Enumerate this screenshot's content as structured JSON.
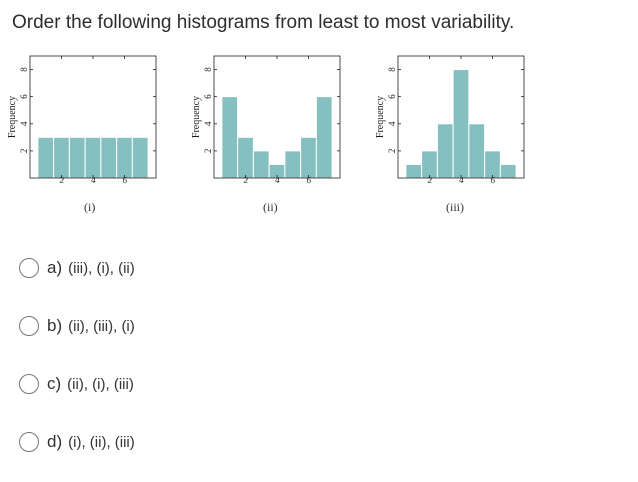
{
  "question": {
    "text": "Order the following histograms from least to most variability."
  },
  "colors": {
    "bar_fill": "#83c0bf",
    "bar_stroke": "#ffffff",
    "axis": "#222222"
  },
  "chart_data": [
    {
      "type": "bar",
      "label": "(i)",
      "ylabel": "Frequency",
      "x": [
        1,
        2,
        3,
        4,
        5,
        6,
        7
      ],
      "values": [
        3,
        3,
        3,
        3,
        3,
        3,
        3
      ],
      "xticks": [
        "2",
        "4",
        "6"
      ],
      "yticks": [
        "2",
        "4",
        "6",
        "8"
      ],
      "ylim": [
        0,
        9
      ]
    },
    {
      "type": "bar",
      "label": "(ii)",
      "ylabel": "Frequency",
      "x": [
        1,
        2,
        3,
        4,
        5,
        6,
        7
      ],
      "values": [
        6,
        3,
        2,
        1,
        2,
        3,
        6
      ],
      "xticks": [
        "2",
        "4",
        "6"
      ],
      "yticks": [
        "2",
        "4",
        "6",
        "8"
      ],
      "ylim": [
        0,
        9
      ]
    },
    {
      "type": "bar",
      "label": "(iii)",
      "ylabel": "Frequency",
      "x": [
        1,
        2,
        3,
        4,
        5,
        6,
        7
      ],
      "values": [
        1,
        2,
        4,
        8,
        4,
        2,
        1
      ],
      "xticks": [
        "2",
        "4",
        "6"
      ],
      "yticks": [
        "2",
        "4",
        "6",
        "8"
      ],
      "ylim": [
        0,
        9
      ]
    }
  ],
  "options": [
    {
      "letter": "a)",
      "text": "(iii), (i), (ii)"
    },
    {
      "letter": "b)",
      "text": "(ii), (iii), (i)"
    },
    {
      "letter": "c)",
      "text": "(ii), (i), (iii)"
    },
    {
      "letter": "d)",
      "text": "(i), (ii), (iii)"
    }
  ]
}
